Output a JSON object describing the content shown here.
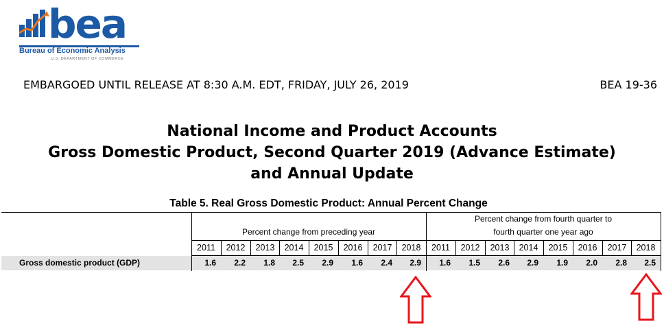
{
  "logo": {
    "wordmark": "bea",
    "agency_name": "Bureau of Economic Analysis",
    "department": "U.S. DEPARTMENT OF COMMERCE",
    "brand_color": "#1d5aa5",
    "accent_color": "#e87722"
  },
  "header": {
    "embargo": "EMBARGOED UNTIL RELEASE AT 8:30 A.M. EDT, FRIDAY, JULY 26, 2019",
    "release_number": "BEA 19-36"
  },
  "title": {
    "line1": "National Income and Product Accounts",
    "line2": "Gross Domestic Product, Second Quarter 2019 (Advance Estimate)",
    "line3": "and Annual Update"
  },
  "table": {
    "title": "Table 5. Real Gross Domestic Product: Annual Percent Change",
    "group1": {
      "label": "Percent change from preceding year"
    },
    "group2": {
      "label_line1": "Percent change from fourth quarter to",
      "label_line2": "fourth quarter one year ago"
    },
    "years": [
      "2011",
      "2012",
      "2013",
      "2014",
      "2015",
      "2016",
      "2017",
      "2018"
    ],
    "row": {
      "label": "Gross domestic product (GDP)",
      "annual": [
        "1.6",
        "2.2",
        "1.8",
        "2.5",
        "2.9",
        "1.6",
        "2.4",
        "2.9"
      ],
      "q4q4": [
        "1.6",
        "1.5",
        "2.6",
        "2.9",
        "1.9",
        "2.0",
        "2.8",
        "2.5"
      ]
    }
  },
  "annotations": {
    "arrow_color": "#e8141c",
    "arrows": [
      "up-arrow",
      "up-arrow"
    ]
  }
}
